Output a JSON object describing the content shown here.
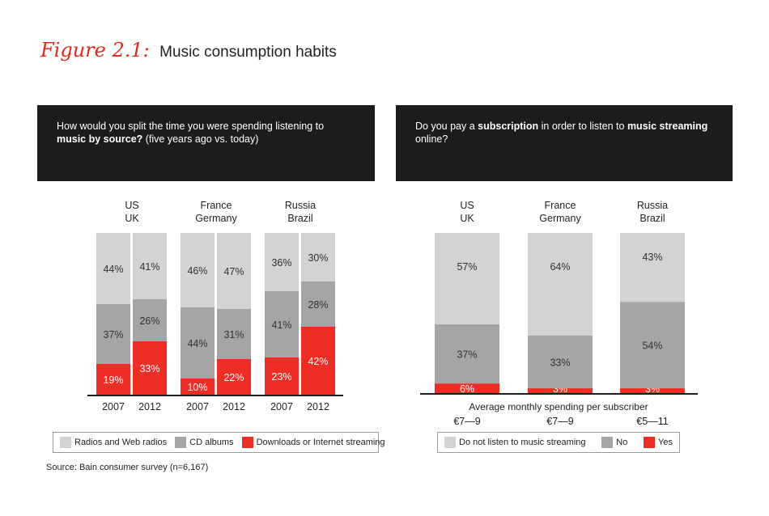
{
  "figure": {
    "label": "Figure 2.1:",
    "title": "Music consumption habits",
    "source": "Source: Bain consumer survey (n=6,167)"
  },
  "colors": {
    "radios": "#d3d3d3",
    "cd": "#a5a5a6",
    "downloads": "#ee2d24",
    "header_bg": "#1c1c1c"
  },
  "chart_data": [
    {
      "type": "bar",
      "stacked": true,
      "question_parts": [
        {
          "text": "How would you split the time you were spending listening to ",
          "bold": false
        },
        {
          "text": "music by source?",
          "bold": true
        },
        {
          "text": " (five years ago vs. today)",
          "bold": false
        }
      ],
      "groups": [
        {
          "label_lines": [
            "US",
            "UK"
          ],
          "bars": [
            {
              "year": "2007",
              "values": [
                19,
                37,
                44
              ],
              "labels": [
                "19%",
                "37%",
                "44%"
              ]
            },
            {
              "year": "2012",
              "values": [
                33,
                26,
                41
              ],
              "labels": [
                "33%",
                "26%",
                "41%"
              ]
            }
          ]
        },
        {
          "label_lines": [
            "France",
            "Germany"
          ],
          "bars": [
            {
              "year": "2007",
              "values": [
                10,
                44,
                46
              ],
              "labels": [
                "10%",
                "44%",
                "46%"
              ]
            },
            {
              "year": "2012",
              "values": [
                22,
                31,
                47
              ],
              "labels": [
                "22%",
                "31%",
                "47%"
              ]
            }
          ]
        },
        {
          "label_lines": [
            "Russia",
            "Brazil"
          ],
          "bars": [
            {
              "year": "2007",
              "values": [
                23,
                41,
                36
              ],
              "labels": [
                "23%",
                "41%",
                "36%"
              ]
            },
            {
              "year": "2012",
              "values": [
                42,
                28,
                30
              ],
              "labels": [
                "42%",
                "28%",
                "30%"
              ]
            }
          ]
        }
      ],
      "series": [
        {
          "name": "Downloads or Internet streaming",
          "color": "#ee2d24"
        },
        {
          "name": "CD albums",
          "color": "#a5a5a6"
        },
        {
          "name": "Radios and Web radios",
          "color": "#d3d3d3"
        }
      ],
      "legend": [
        {
          "name": "Radios and Web radios",
          "color": "#d3d3d3"
        },
        {
          "name": "CD albums",
          "color": "#a5a5a6"
        },
        {
          "name": "Downloads or Internet streaming",
          "color": "#ee2d24"
        }
      ],
      "ylim": [
        0,
        100
      ],
      "legend_position": "bottom"
    },
    {
      "type": "bar",
      "stacked": true,
      "question_parts": [
        {
          "text": "Do you pay a ",
          "bold": false
        },
        {
          "text": "subscription",
          "bold": true
        },
        {
          "text": " in order to listen to ",
          "bold": false
        },
        {
          "text": "music streaming",
          "bold": true
        },
        {
          "text": " online?",
          "bold": false
        }
      ],
      "groups": [
        {
          "label_lines": [
            "US",
            "UK"
          ],
          "values": [
            6,
            37,
            57
          ],
          "labels": [
            "6%",
            "37%",
            "57%"
          ],
          "spending": "€7—9"
        },
        {
          "label_lines": [
            "France",
            "Germany"
          ],
          "values": [
            3,
            33,
            64
          ],
          "labels": [
            "3%",
            "33%",
            "64%"
          ],
          "spending": "€7—9"
        },
        {
          "label_lines": [
            "Russia",
            "Brazil"
          ],
          "values": [
            3,
            54,
            43
          ],
          "labels": [
            "3%",
            "54%",
            "43%"
          ],
          "spending": "€5—11"
        }
      ],
      "series": [
        {
          "name": "Yes",
          "color": "#ee2d24"
        },
        {
          "name": "No",
          "color": "#a5a5a6"
        },
        {
          "name": "Do not listen to music streaming",
          "color": "#d3d3d3"
        }
      ],
      "legend": [
        {
          "name": "Do not listen to music streaming",
          "color": "#d3d3d3"
        },
        {
          "name": "No",
          "color": "#a5a5a6"
        },
        {
          "name": "Yes",
          "color": "#ee2d24"
        }
      ],
      "spending_title": "Average monthly spending per subscriber",
      "ylim": [
        0,
        100
      ],
      "legend_position": "bottom"
    }
  ]
}
